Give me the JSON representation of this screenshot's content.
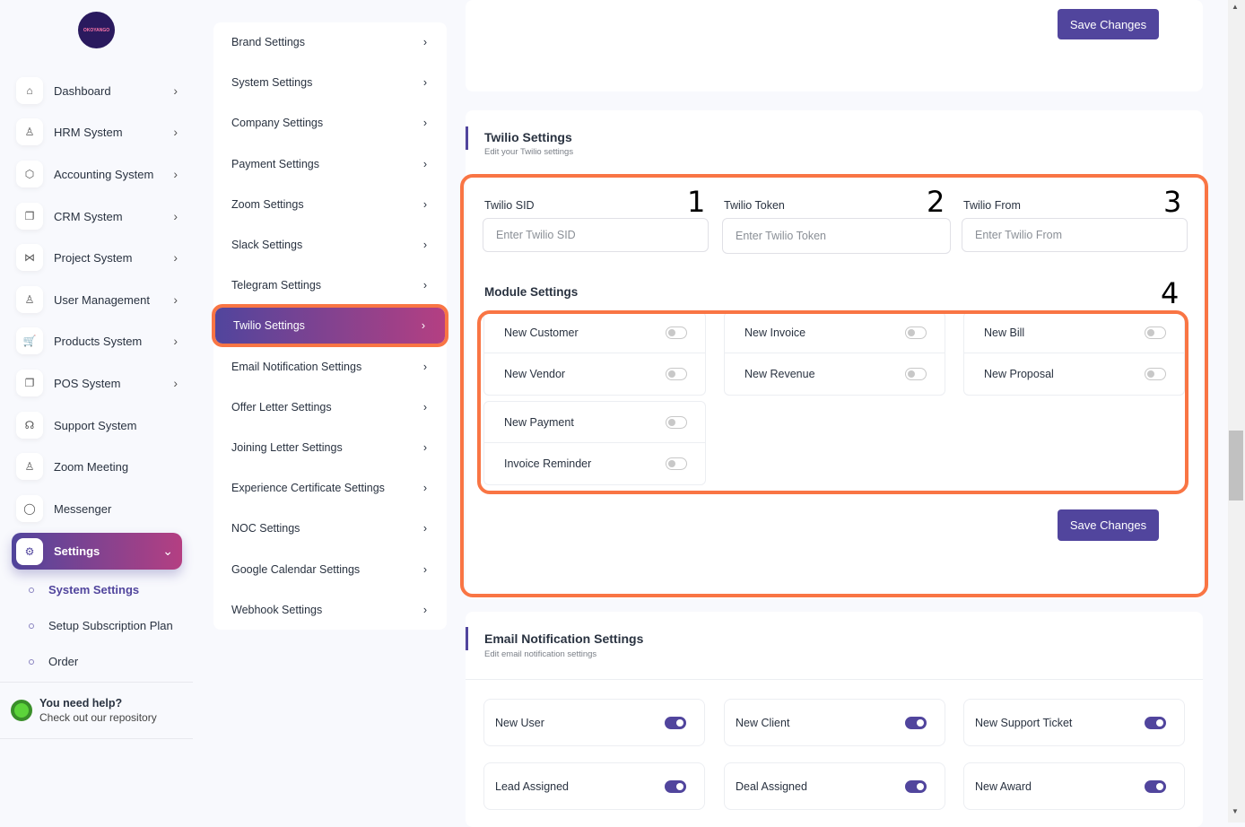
{
  "brand": {
    "logo_text": "OKOYANGO"
  },
  "sidebar": {
    "items": [
      {
        "label": "Dashboard",
        "icon": "home-icon"
      },
      {
        "label": "HRM System",
        "icon": "user-icon"
      },
      {
        "label": "Accounting System",
        "icon": "box-icon"
      },
      {
        "label": "CRM System",
        "icon": "layers-icon"
      },
      {
        "label": "Project System",
        "icon": "share-icon"
      },
      {
        "label": "User Management",
        "icon": "users-icon"
      },
      {
        "label": "Products System",
        "icon": "cart-icon"
      },
      {
        "label": "POS System",
        "icon": "layers-icon"
      },
      {
        "label": "Support System",
        "icon": "headphones-icon"
      },
      {
        "label": "Zoom Meeting",
        "icon": "user-check-icon"
      },
      {
        "label": "Messenger",
        "icon": "message-icon"
      }
    ],
    "active": {
      "label": "Settings",
      "icon": "gear-icon"
    },
    "sub_items": [
      {
        "label": "System Settings",
        "active": true
      },
      {
        "label": "Setup Subscription Plan"
      },
      {
        "label": "Order"
      }
    ],
    "help": {
      "title": "You need help?",
      "text": "Check out our repository"
    }
  },
  "settings_menu": [
    "Brand Settings",
    "System Settings",
    "Company Settings",
    "Payment Settings",
    "Zoom Settings",
    "Slack Settings",
    "Telegram Settings",
    "Twilio Settings",
    "Email Notification Settings",
    "Offer Letter Settings",
    "Joining Letter Settings",
    "Experience Certificate Settings",
    "NOC Settings",
    "Google Calendar Settings",
    "Webhook Settings"
  ],
  "settings_menu_active": "Twilio Settings",
  "top_card": {
    "save_label": "Save Changes"
  },
  "twilio": {
    "title": "Twilio Settings",
    "subtitle": "Edit your Twilio settings",
    "fields": [
      {
        "label": "Twilio SID",
        "placeholder": "Enter Twilio SID",
        "value": ""
      },
      {
        "label": "Twilio Token",
        "placeholder": "Enter Twilio Token",
        "value": ""
      },
      {
        "label": "Twilio From",
        "placeholder": "Enter Twilio From",
        "value": ""
      }
    ],
    "module_title": "Module Settings",
    "modules": {
      "col1a": [
        {
          "label": "New Customer",
          "on": false
        },
        {
          "label": "New Vendor",
          "on": false
        }
      ],
      "col1b": [
        {
          "label": "New Payment",
          "on": false
        },
        {
          "label": "Invoice Reminder",
          "on": false
        }
      ],
      "col2": [
        {
          "label": "New Invoice",
          "on": false
        },
        {
          "label": "New Revenue",
          "on": false
        }
      ],
      "col3": [
        {
          "label": "New Bill",
          "on": false
        },
        {
          "label": "New Proposal",
          "on": false
        }
      ]
    },
    "save_label": "Save Changes"
  },
  "annotations": [
    "1",
    "2",
    "3",
    "4"
  ],
  "email": {
    "title": "Email Notification Settings",
    "subtitle": "Edit email notification settings",
    "items": [
      {
        "label": "New User",
        "on": true
      },
      {
        "label": "New Client",
        "on": true
      },
      {
        "label": "New Support Ticket",
        "on": true
      },
      {
        "label": "Lead Assigned",
        "on": true
      },
      {
        "label": "Deal Assigned",
        "on": true
      },
      {
        "label": "New Award",
        "on": true
      }
    ]
  },
  "colors": {
    "primary": "#51459d",
    "accent_gradient_end": "#b43f82",
    "annotation": "#f97544"
  }
}
